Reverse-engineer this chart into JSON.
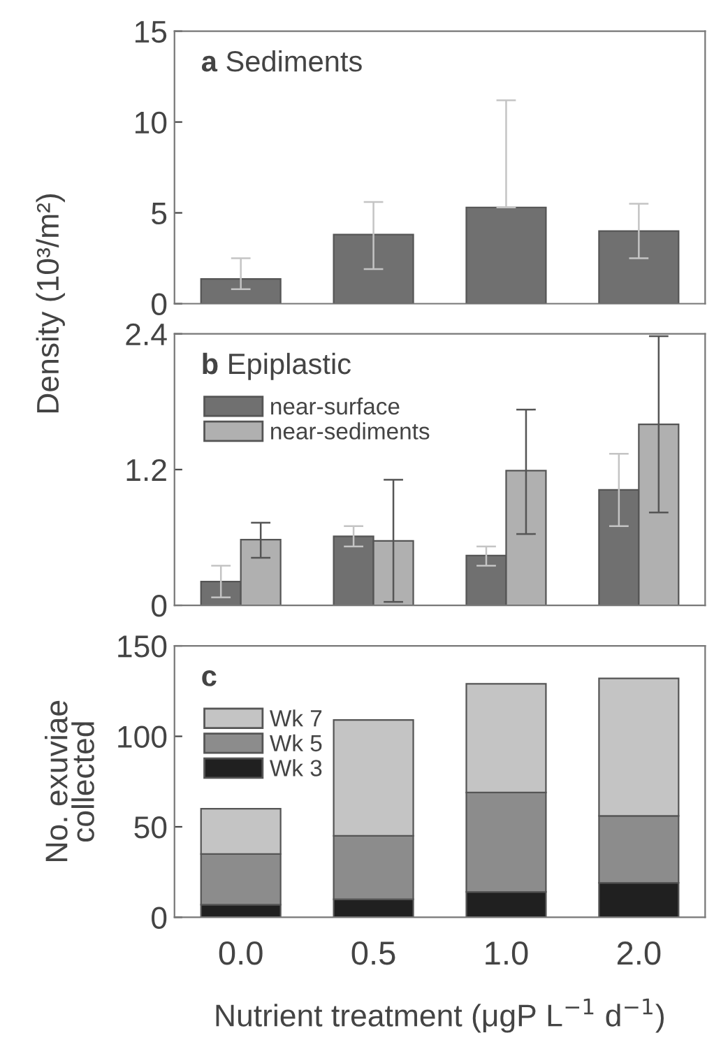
{
  "chart_data": [
    {
      "type": "bar",
      "title": "a Sediments",
      "ylabel": "Density (10³/m²)",
      "categories": [
        "0.0",
        "0.5",
        "1.0",
        "2.0"
      ],
      "series": [
        {
          "color": "#707070",
          "values": [
            1.36,
            3.8,
            5.3,
            4.0
          ],
          "errors": [
            [
              0.8,
              2.5
            ],
            [
              1.9,
              5.6
            ],
            [
              5.3,
              11.2
            ],
            [
              2.5,
              5.5
            ]
          ]
        }
      ],
      "ylim": [
        0,
        15
      ],
      "yticks": [
        0,
        5,
        10,
        15
      ],
      "tick_labels": "y",
      "grid": false,
      "legend": false
    },
    {
      "type": "bar",
      "title": "b Epiplastic",
      "categories": [
        "0.0",
        "0.5",
        "1.0",
        "2.0"
      ],
      "series": [
        {
          "name": "near-surface",
          "color": "#707070",
          "values": [
            0.21,
            0.61,
            0.44,
            1.02
          ],
          "errors": [
            [
              0.07,
              0.35
            ],
            [
              0.52,
              0.7
            ],
            [
              0.35,
              0.52
            ],
            [
              0.7,
              1.34
            ]
          ]
        },
        {
          "name": "near-sediments",
          "color": "#b0b0b0",
          "values": [
            0.58,
            0.57,
            1.19,
            1.6
          ],
          "errors": [
            [
              0.42,
              0.73
            ],
            [
              0.03,
              1.11
            ],
            [
              0.63,
              1.73
            ],
            [
              0.82,
              2.38
            ]
          ]
        }
      ],
      "ylim": [
        0,
        2.4
      ],
      "yticks": [
        0,
        1.2,
        2.4
      ],
      "tick_labels": "y",
      "grid": false,
      "legend": "top left"
    },
    {
      "type": "bar",
      "stacked": true,
      "title": "c",
      "ylabel": "No. exuviae\ncollected",
      "xlabel": "Nutrient treatment (μgP L$^{−1}$ d$^{−1}$)",
      "categories": [
        "0.0",
        "0.5",
        "1.0",
        "2.0"
      ],
      "series": [
        {
          "name": "Wk 3",
          "color": "#202020",
          "values": [
            7,
            10,
            14,
            19
          ]
        },
        {
          "name": "Wk 5",
          "color": "#8c8c8c",
          "values": [
            28,
            35,
            55,
            37
          ]
        },
        {
          "name": "Wk 7",
          "color": "#c4c4c4",
          "values": [
            25,
            64,
            60,
            76
          ]
        }
      ],
      "ylim": [
        0,
        150
      ],
      "yticks": [
        0,
        50,
        100,
        150
      ],
      "grid": false,
      "legend": "top left"
    }
  ]
}
